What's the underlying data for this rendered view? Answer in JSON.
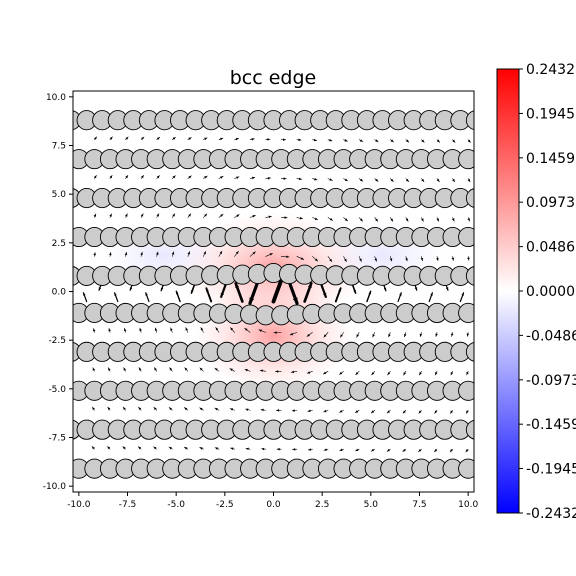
{
  "chart_data": {
    "type": "scatter",
    "title": "bcc edge",
    "xlabel": "",
    "ylabel": "",
    "xlim": [
      -10.3,
      10.3
    ],
    "ylim": [
      -10.3,
      10.3
    ],
    "xticks": [
      "-10.0",
      "-7.5",
      "-5.0",
      "-2.5",
      "0.0",
      "2.5",
      "5.0",
      "7.5",
      "10.0"
    ],
    "yticks": [
      "10.0",
      "7.5",
      "5.0",
      "2.5",
      "0.0",
      "-2.5",
      "-5.0",
      "-7.5",
      "-10.0"
    ],
    "atom_rows_y": [
      8.8,
      6.8,
      4.8,
      2.8,
      0.8,
      -1.1,
      -3.1,
      -5.1,
      -7.1,
      -9.1
    ],
    "atom_spacing_x": 0.8,
    "atom_fill": "#cccccc",
    "atom_edge": "#000000",
    "colorbar": {
      "cmap": "bwr",
      "min": -0.2432,
      "max": 0.2432,
      "ticks": [
        "0.2432",
        "0.1945",
        "0.1459",
        "0.0973",
        "0.0486",
        "0.0000",
        "-0.0486",
        "-0.0973",
        "-0.1459",
        "-0.1945",
        "-0.2432"
      ],
      "high_color": "#ff0000",
      "mid_color": "#ffffff",
      "low_color": "#0000ff"
    },
    "field_core": {
      "x": 0.0,
      "y": -0.2
    }
  }
}
